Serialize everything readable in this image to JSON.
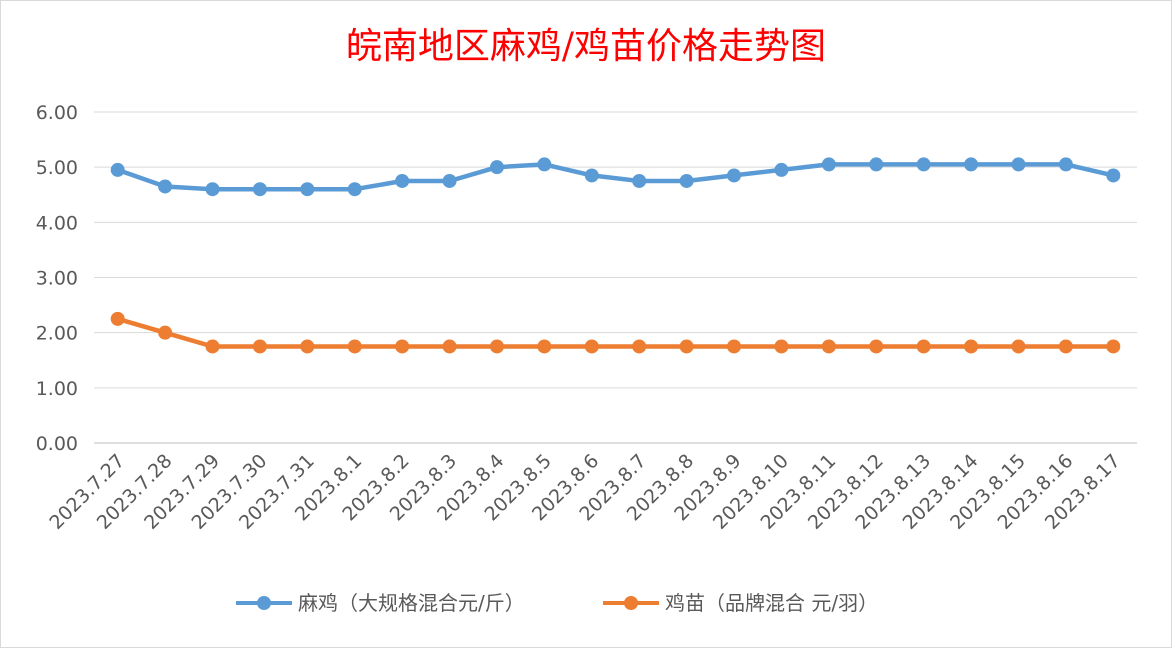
{
  "chart_data": {
    "type": "line",
    "title": "皖南地区麻鸡/鸡苗价格走势图",
    "xlabel": "",
    "ylabel": "",
    "categories": [
      "2023.7.27",
      "2023.7.28",
      "2023.7.29",
      "2023.7.30",
      "2023.7.31",
      "2023.8.1",
      "2023.8.2",
      "2023.8.3",
      "2023.8.4",
      "2023.8.5",
      "2023.8.6",
      "2023.8.7",
      "2023.8.8",
      "2023.8.9",
      "2023.8.10",
      "2023.8.11",
      "2023.8.12",
      "2023.8.13",
      "2023.8.14",
      "2023.8.15",
      "2023.8.16",
      "2023.8.17"
    ],
    "yticks": [
      "0.00",
      "1.00",
      "2.00",
      "3.00",
      "4.00",
      "5.00",
      "6.00"
    ],
    "ylim": [
      0,
      6
    ],
    "grid": true,
    "legend_position": "bottom",
    "series": [
      {
        "name": "麻鸡（大规格混合元/斤）",
        "color": "#5b9bd5",
        "values": [
          4.95,
          4.65,
          4.6,
          4.6,
          4.6,
          4.6,
          4.75,
          4.75,
          5.0,
          5.05,
          4.85,
          4.75,
          4.75,
          4.85,
          4.95,
          5.05,
          5.05,
          5.05,
          5.05,
          5.05,
          5.05,
          4.85
        ]
      },
      {
        "name": "鸡苗（品牌混合 元/羽）",
        "color": "#ed7d31",
        "values": [
          2.25,
          2.0,
          1.75,
          1.75,
          1.75,
          1.75,
          1.75,
          1.75,
          1.75,
          1.75,
          1.75,
          1.75,
          1.75,
          1.75,
          1.75,
          1.75,
          1.75,
          1.75,
          1.75,
          1.75,
          1.75,
          1.75
        ]
      }
    ]
  }
}
